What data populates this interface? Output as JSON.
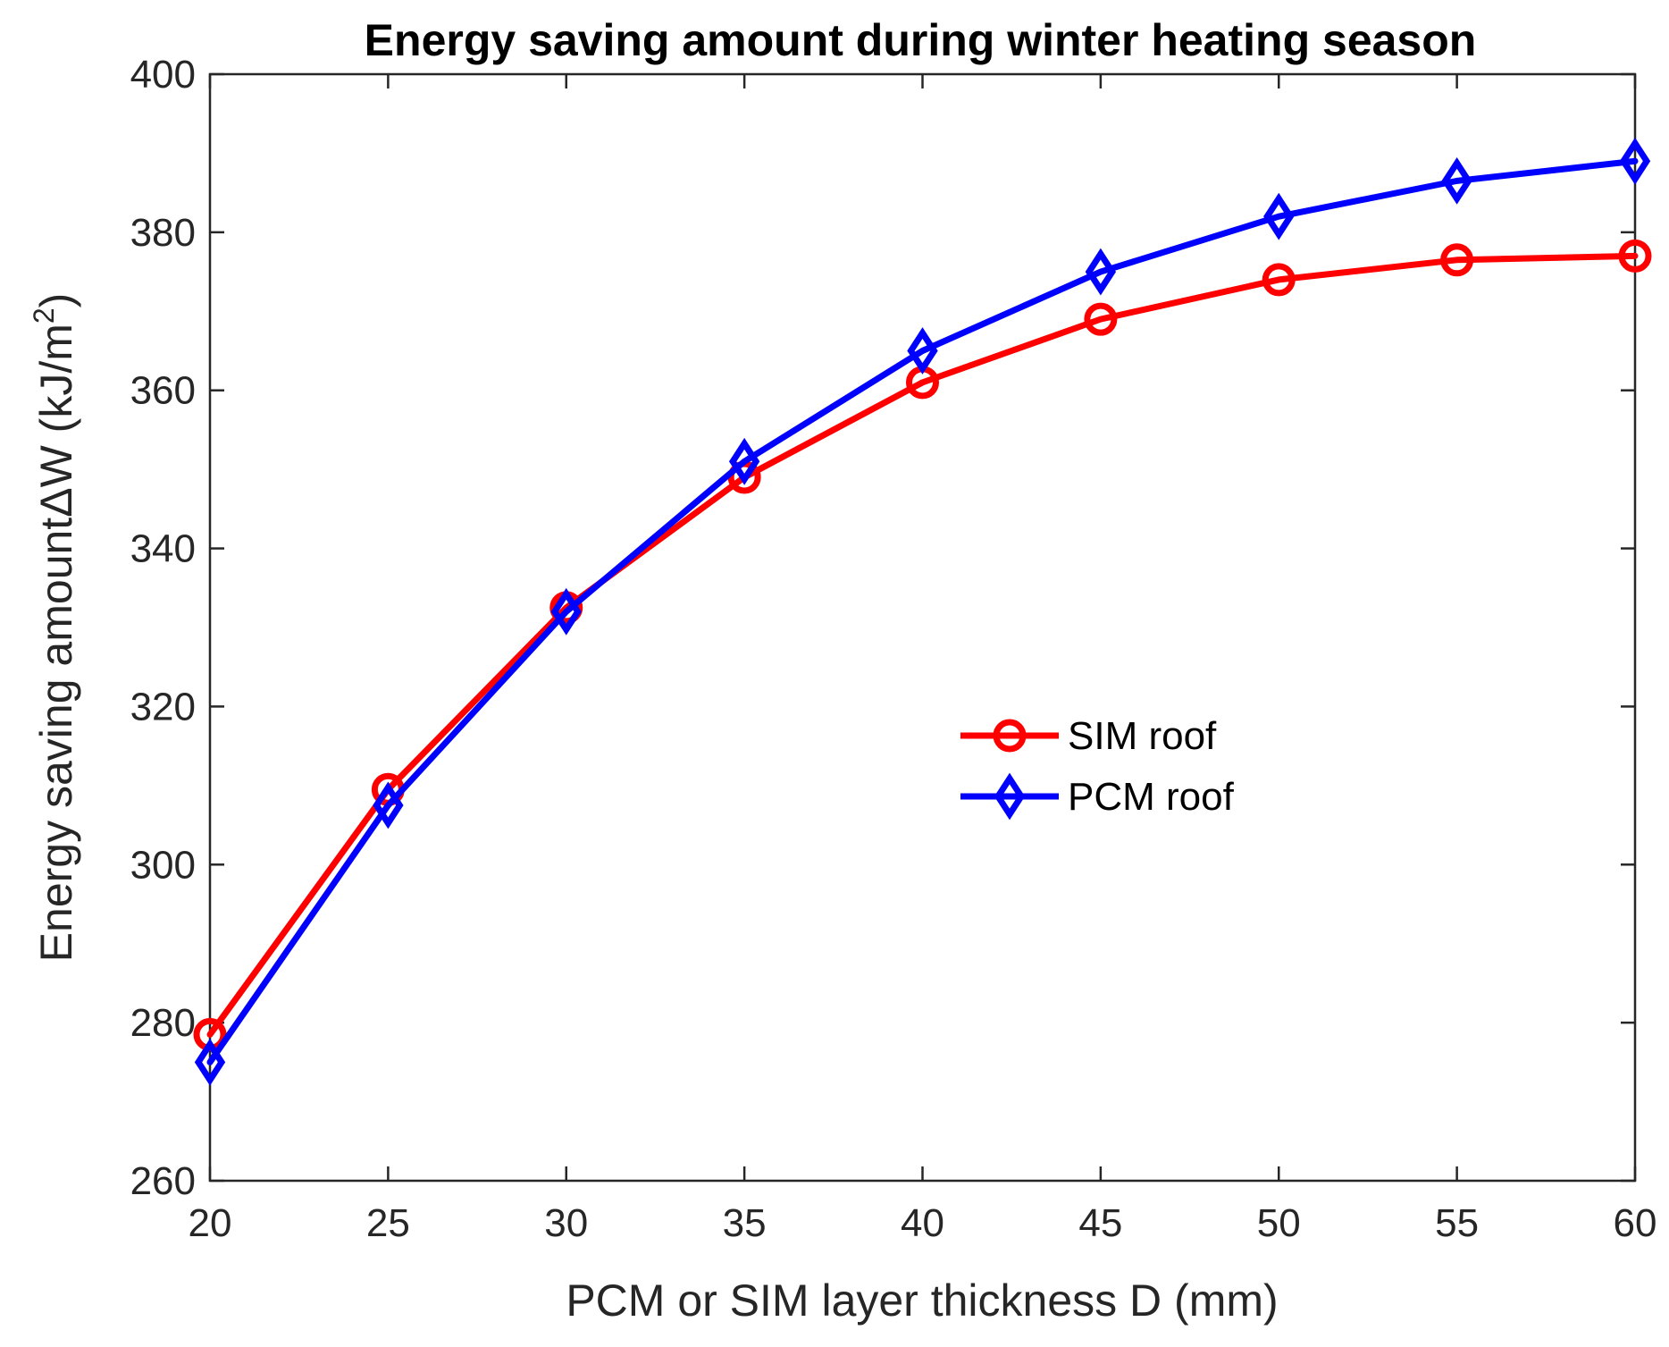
{
  "chart_data": {
    "type": "line",
    "title": "Energy saving amount during winter heating season",
    "xlabel": "PCM or SIM layer thickness D (mm)",
    "ylabel_main": "Energy saving amountΔW (kJ/m",
    "ylabel_sup": "2",
    "ylabel_close": ")",
    "x": [
      20,
      25,
      30,
      35,
      40,
      45,
      50,
      55,
      60
    ],
    "xlim": [
      20,
      60
    ],
    "ylim": [
      260,
      400
    ],
    "xticks": [
      20,
      25,
      30,
      35,
      40,
      45,
      50,
      55,
      60
    ],
    "yticks": [
      260,
      280,
      300,
      320,
      340,
      360,
      380,
      400
    ],
    "grid": false,
    "legend_location": "center-right",
    "series": [
      {
        "name": "SIM roof",
        "marker": "circle",
        "color": "#ff0000",
        "values": [
          278.5,
          309.5,
          332.5,
          349,
          361,
          369,
          374,
          376.5,
          377
        ]
      },
      {
        "name": "PCM roof",
        "marker": "diamond",
        "color": "#0000ff",
        "values": [
          275,
          307.5,
          332,
          351,
          365,
          375,
          382,
          386.5,
          389
        ]
      }
    ]
  }
}
